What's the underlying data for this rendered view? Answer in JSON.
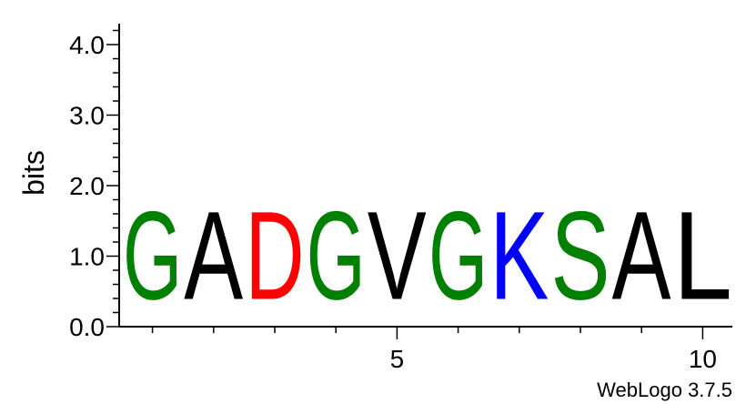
{
  "chart_data": {
    "type": "sequence_logo",
    "title": "",
    "ylabel": "bits",
    "xlabel": "",
    "ylim": [
      0,
      4.3
    ],
    "y_ticks": [
      0.0,
      1.0,
      2.0,
      3.0,
      4.0
    ],
    "y_tick_labels": [
      "0.0",
      "1.0",
      "2.0",
      "3.0",
      "4.0"
    ],
    "x_ticks": [
      5,
      10
    ],
    "x_tick_labels": [
      "5",
      "10"
    ],
    "positions": [
      {
        "position": 1,
        "letter": "G",
        "bits": 2.0,
        "color": "#008000"
      },
      {
        "position": 2,
        "letter": "A",
        "bits": 2.0,
        "color": "#000000"
      },
      {
        "position": 3,
        "letter": "D",
        "bits": 2.0,
        "color": "#ff0000"
      },
      {
        "position": 4,
        "letter": "G",
        "bits": 2.0,
        "color": "#008000"
      },
      {
        "position": 5,
        "letter": "V",
        "bits": 2.0,
        "color": "#000000"
      },
      {
        "position": 6,
        "letter": "G",
        "bits": 2.0,
        "color": "#008000"
      },
      {
        "position": 7,
        "letter": "K",
        "bits": 2.0,
        "color": "#0000ff"
      },
      {
        "position": 8,
        "letter": "S",
        "bits": 2.0,
        "color": "#008000"
      },
      {
        "position": 9,
        "letter": "A",
        "bits": 2.0,
        "color": "#000000"
      },
      {
        "position": 10,
        "letter": "L",
        "bits": 2.0,
        "color": "#000000"
      }
    ]
  },
  "credit": "WebLogo 3.7.5"
}
